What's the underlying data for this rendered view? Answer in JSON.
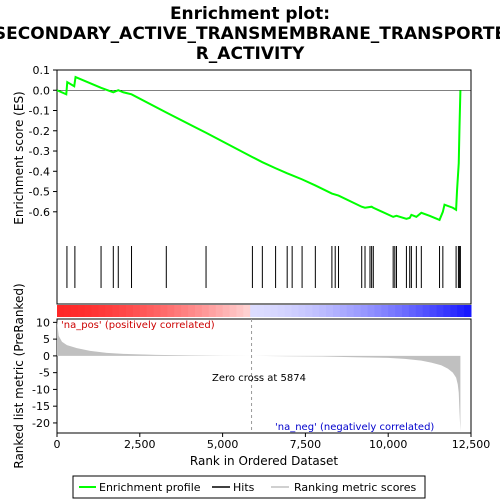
{
  "title_line1": "Enrichment plot:",
  "title_line2": "SECONDARY_ACTIVE_TRANSMEMBRANE_TRANSPORTE",
  "title_line3": "R_ACTIVITY",
  "ylabel_top": "Enrichment score (ES)",
  "ylabel_bottom": "Ranked list metric (PreRanked)",
  "xlabel": "Rank in Ordered Dataset",
  "annotation_pos": "'na_pos' (positively correlated)",
  "annotation_neg": "'na_neg' (negatively correlated)",
  "annotation_zero": "Zero cross at 5874",
  "legend": {
    "enrichment_profile": "Enrichment profile",
    "hits": "Hits",
    "ranking_metric": "Ranking metric scores"
  },
  "colors": {
    "profile": "#00ff00",
    "hits": "#000000",
    "metric": "#c0c0c0",
    "pos_band": "#ff0000",
    "neg_band": "#0000ff"
  },
  "chart_data": [
    {
      "type": "line",
      "name": "enrichment_score",
      "xlim": [
        0,
        12500
      ],
      "ylim": [
        -0.68,
        0.1
      ],
      "yticks": [
        0.1,
        0.0,
        -0.1,
        -0.2,
        -0.3,
        -0.4,
        -0.5,
        -0.6
      ],
      "ytick_labels": [
        "0.1",
        "0.0",
        "-0.1",
        "-0.2",
        "-0.3",
        "-0.4",
        "-0.5",
        "-0.6"
      ],
      "x": [
        0,
        280,
        310,
        520,
        560,
        1330,
        1700,
        1850,
        2000,
        2250,
        3300,
        4500,
        5900,
        6200,
        6600,
        6950,
        7100,
        7400,
        7800,
        8300,
        8500,
        9200,
        9300,
        9500,
        9550,
        10150,
        10250,
        10550,
        10650,
        10700,
        10850,
        11000,
        11250,
        11550,
        11650,
        11700,
        11950,
        12050,
        12080,
        12130,
        12150,
        12180
      ],
      "y": [
        0.0,
        -0.02,
        0.04,
        0.02,
        0.065,
        0.012,
        -0.01,
        0.0,
        -0.01,
        -0.02,
        -0.11,
        -0.21,
        -0.33,
        -0.355,
        -0.385,
        -0.41,
        -0.42,
        -0.44,
        -0.47,
        -0.51,
        -0.52,
        -0.575,
        -0.58,
        -0.575,
        -0.58,
        -0.625,
        -0.62,
        -0.635,
        -0.63,
        -0.615,
        -0.625,
        -0.605,
        -0.62,
        -0.64,
        -0.6,
        -0.565,
        -0.58,
        -0.59,
        -0.49,
        -0.36,
        -0.2,
        0.0
      ]
    },
    {
      "type": "hits",
      "name": "hits",
      "x": [
        300,
        540,
        1330,
        1700,
        1850,
        2250,
        3300,
        4500,
        5900,
        6200,
        6600,
        6950,
        7100,
        7400,
        7800,
        8300,
        8400,
        8500,
        9200,
        9300,
        9450,
        9500,
        9550,
        10150,
        10200,
        10250,
        10550,
        10650,
        10700,
        10850,
        11000,
        11550,
        11650,
        12050,
        12120,
        12150,
        12180
      ]
    },
    {
      "type": "area",
      "name": "ranking_metric",
      "xlim": [
        0,
        12500
      ],
      "ylim": [
        -23,
        11
      ],
      "yticks": [
        10,
        5,
        0,
        -5,
        -10,
        -15,
        -20
      ],
      "ytick_labels": [
        "10",
        "5",
        "0",
        "-5",
        "-10",
        "-15",
        "-20"
      ],
      "xticks": [
        0,
        2500,
        5000,
        7500,
        10000,
        12500
      ],
      "xtick_labels": [
        "0",
        "2,500",
        "5,000",
        "7,500",
        "10,000",
        "12,500"
      ],
      "zero_cross": 5874,
      "x": [
        0,
        50,
        150,
        300,
        600,
        1000,
        1500,
        2000,
        3000,
        4000,
        5000,
        5874,
        7000,
        8000,
        9000,
        10000,
        10500,
        11000,
        11300,
        11600,
        11800,
        11950,
        12050,
        12100,
        12130,
        12150,
        12180
      ],
      "y": [
        10.5,
        6.0,
        4.2,
        3.2,
        2.3,
        1.5,
        0.9,
        0.6,
        0.3,
        0.15,
        0.05,
        0.0,
        -0.1,
        -0.2,
        -0.4,
        -0.6,
        -0.9,
        -1.4,
        -2.0,
        -2.8,
        -3.8,
        -5.0,
        -6.5,
        -8.5,
        -11.0,
        -16.0,
        -22.5
      ]
    }
  ]
}
